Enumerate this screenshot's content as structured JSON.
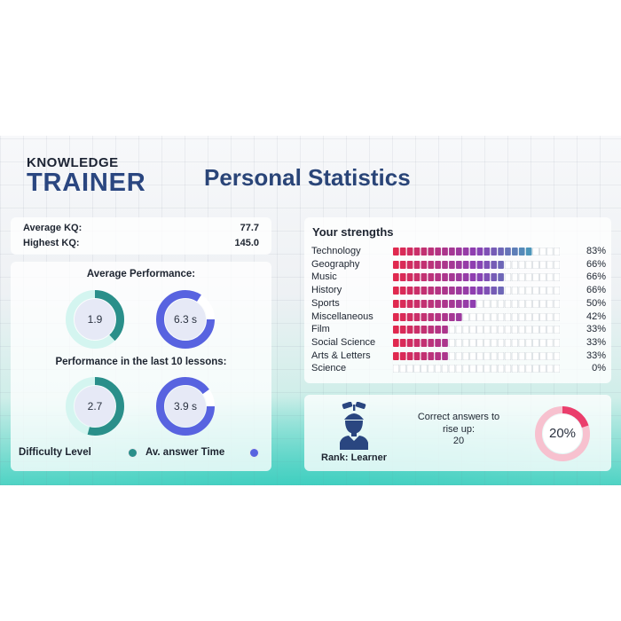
{
  "logo": {
    "line1": "KNOWLEDGE",
    "line2": "TRAINER"
  },
  "title": "Personal Statistics",
  "kq": {
    "average_label": "Average KQ:",
    "average_value": "77.7",
    "highest_label": "Highest KQ:",
    "highest_value": "145.0"
  },
  "performance": {
    "average_heading": "Average Performance:",
    "last10_heading": "Performance in the last 10 lessons:",
    "average": {
      "difficulty": {
        "label": "1.9",
        "fraction": 0.38
      },
      "answer_time": {
        "label": "6.3 s",
        "fraction": 0.84
      }
    },
    "last10": {
      "difficulty": {
        "label": "2.7",
        "fraction": 0.54
      },
      "answer_time": {
        "label": "3.9 s",
        "fraction": 0.9
      }
    },
    "legend": {
      "difficulty": "Difficulty Level",
      "answer_time": "Av. answer Time"
    }
  },
  "strengths": {
    "title": "Your strengths",
    "items": [
      {
        "name": "Technology",
        "pct": "83%",
        "value": 83
      },
      {
        "name": "Geography",
        "pct": "66%",
        "value": 66
      },
      {
        "name": "Music",
        "pct": "66%",
        "value": 66
      },
      {
        "name": "History",
        "pct": "66%",
        "value": 66
      },
      {
        "name": "Sports",
        "pct": "50%",
        "value": 50
      },
      {
        "name": "Miscellaneous",
        "pct": "42%",
        "value": 42
      },
      {
        "name": "Film",
        "pct": "33%",
        "value": 33
      },
      {
        "name": "Social Science",
        "pct": "33%",
        "value": 33
      },
      {
        "name": "Arts & Letters",
        "pct": "33%",
        "value": 33
      },
      {
        "name": "Science",
        "pct": "0%",
        "value": 0
      }
    ]
  },
  "rank": {
    "label": "Rank: Learner",
    "rise_text": "Correct answers to rise up:",
    "rise_value": "20",
    "progress_label": "20%",
    "progress_value": 20
  },
  "colors": {
    "difficulty": "#2a8f8a",
    "difficulty_track": "#d4f5f0",
    "answer_time": "#5863e0",
    "answer_time_track": "#ffffff",
    "bar_start": "#e0294f",
    "bar_mid": "#8b3fb4",
    "bar_end": "#2cc4bd",
    "rank_ring": "#ea3e6c",
    "rank_ring_track": "#f7c1cf",
    "avatar": "#2a4680"
  },
  "icons": {
    "avatar": "student-propeller-cap-icon"
  }
}
